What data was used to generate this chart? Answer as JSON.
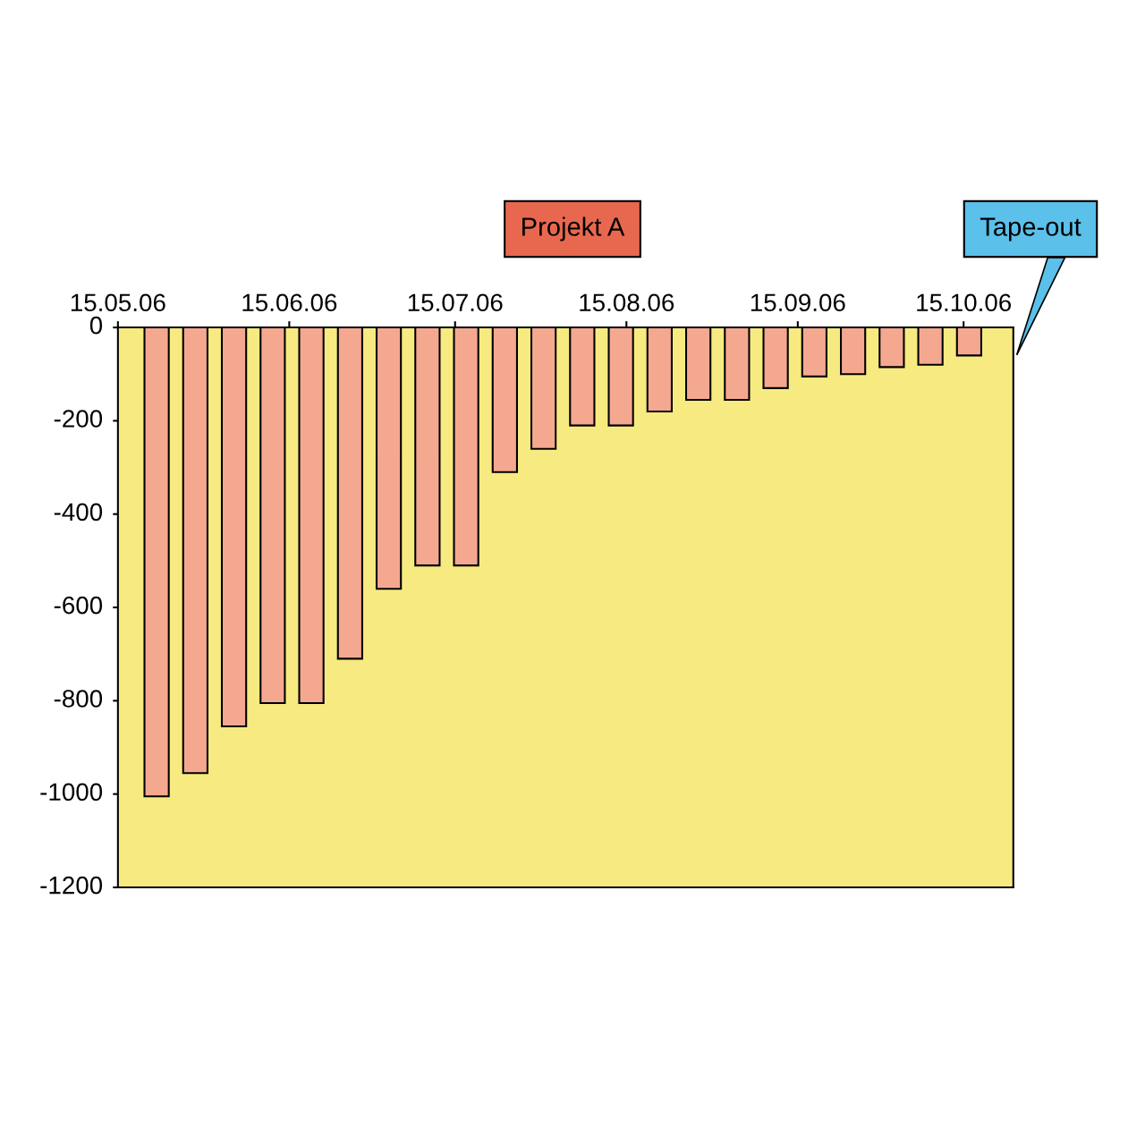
{
  "chart_data": {
    "type": "bar",
    "title": "Projekt A",
    "x": [
      "2006-05-22",
      "2006-05-29",
      "2006-06-05",
      "2006-06-12",
      "2006-06-19",
      "2006-06-26",
      "2006-07-03",
      "2006-07-10",
      "2006-07-17",
      "2006-07-24",
      "2006-07-31",
      "2006-08-07",
      "2006-08-14",
      "2006-08-21",
      "2006-08-28",
      "2006-09-04",
      "2006-09-11",
      "2006-09-18",
      "2006-09-25",
      "2006-10-02",
      "2006-10-09",
      "2006-10-16"
    ],
    "values": [
      -1005,
      -955,
      -855,
      -805,
      -805,
      -710,
      -560,
      -510,
      -510,
      -310,
      -260,
      -210,
      -210,
      -180,
      -155,
      -155,
      -130,
      -105,
      -100,
      -85,
      -80,
      -60
    ],
    "color": "#f4a890",
    "xlim": [
      "2006-05-15",
      "2006-10-24"
    ],
    "xticks": [
      {
        "value": "2006-05-15",
        "label": "15.05.06"
      },
      {
        "value": "2006-06-15",
        "label": "15.06.06"
      },
      {
        "value": "2006-07-15",
        "label": "15.07.06"
      },
      {
        "value": "2006-08-15",
        "label": "15.08.06"
      },
      {
        "value": "2006-09-15",
        "label": "15.09.06"
      },
      {
        "value": "2006-10-15",
        "label": "15.10.06"
      }
    ],
    "ylim": [
      -1200,
      0
    ],
    "yticks": [
      0,
      -200,
      -400,
      -600,
      -800,
      -1000,
      -1200
    ],
    "grid": false,
    "annotations": [
      "Tape-out"
    ]
  }
}
